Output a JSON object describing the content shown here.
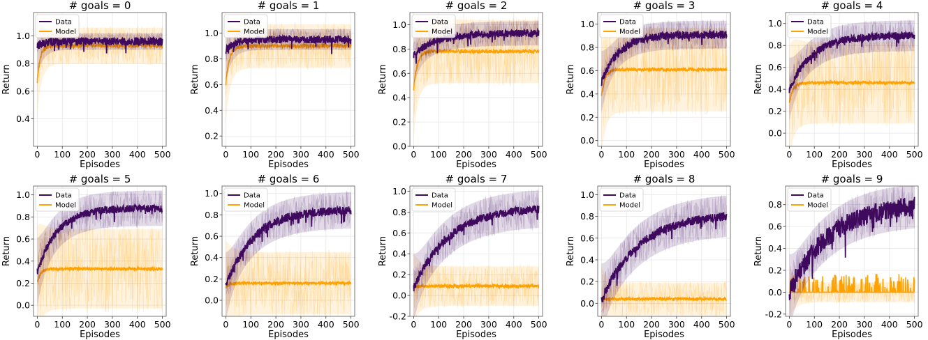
{
  "colors": {
    "data": "#3f0a5e",
    "model": "#ffa200"
  },
  "chart_data": [
    {
      "type": "line",
      "title": "# goals = 0",
      "xlabel": "Episodes",
      "ylabel": "Return",
      "xlim": [
        -15,
        515
      ],
      "ylim": [
        0.2,
        1.17
      ],
      "yticks": [
        0.4,
        0.6,
        0.8,
        1.0
      ],
      "xticks": [
        0,
        100,
        200,
        300,
        400,
        500
      ],
      "legend": "top-left",
      "grid": true,
      "series": [
        {
          "name": "Data",
          "start": 0.93,
          "end": 0.96,
          "rate": 30,
          "noise": 0.03,
          "band": 0.06
        },
        {
          "name": "Model",
          "start": 0.67,
          "end": 0.93,
          "rate": 12,
          "noise": 0.015,
          "band": 0.13
        }
      ]
    },
    {
      "type": "line",
      "title": "# goals = 1",
      "xlabel": "Episodes",
      "ylabel": "Return",
      "xlim": [
        -15,
        515
      ],
      "ylim": [
        0.12,
        1.16
      ],
      "yticks": [
        0.2,
        0.4,
        0.6,
        0.8,
        1.0
      ],
      "xticks": [
        0,
        100,
        200,
        300,
        400,
        500
      ],
      "legend": "top-left",
      "grid": true,
      "series": [
        {
          "name": "Data",
          "start": 0.86,
          "end": 0.95,
          "rate": 30,
          "noise": 0.03,
          "band": 0.08
        },
        {
          "name": "Model",
          "start": 0.6,
          "end": 0.9,
          "rate": 14,
          "noise": 0.015,
          "band": 0.17
        }
      ]
    },
    {
      "type": "line",
      "title": "# goals = 2",
      "xlabel": "Episodes",
      "ylabel": "Return",
      "xlim": [
        -15,
        515
      ],
      "ylim": [
        0.0,
        1.1
      ],
      "yticks": [
        0.0,
        0.2,
        0.4,
        0.6,
        0.8,
        1.0
      ],
      "xticks": [
        0,
        100,
        200,
        300,
        400,
        500
      ],
      "legend": "top-left",
      "grid": true,
      "series": [
        {
          "name": "Data",
          "start": 0.75,
          "end": 0.93,
          "rate": 90,
          "noise": 0.03,
          "band": 0.1
        },
        {
          "name": "Model",
          "start": 0.46,
          "end": 0.78,
          "rate": 14,
          "noise": 0.012,
          "band": 0.26
        }
      ]
    },
    {
      "type": "line",
      "title": "# goals = 3",
      "xlabel": "Episodes",
      "ylabel": "Return",
      "xlim": [
        -15,
        515
      ],
      "ylim": [
        -0.05,
        1.1
      ],
      "yticks": [
        0.0,
        0.2,
        0.4,
        0.6,
        0.8,
        1.0
      ],
      "xticks": [
        0,
        100,
        200,
        300,
        400,
        500
      ],
      "legend": "top-left",
      "grid": true,
      "series": [
        {
          "name": "Data",
          "start": 0.5,
          "end": 0.91,
          "rate": 70,
          "noise": 0.035,
          "band": 0.12
        },
        {
          "name": "Model",
          "start": 0.38,
          "end": 0.61,
          "rate": 14,
          "noise": 0.012,
          "band": 0.36
        }
      ]
    },
    {
      "type": "line",
      "title": "# goals = 4",
      "xlabel": "Episodes",
      "ylabel": "Return",
      "xlim": [
        -15,
        515
      ],
      "ylim": [
        -0.12,
        1.1
      ],
      "yticks": [
        0.0,
        0.2,
        0.4,
        0.6,
        0.8,
        1.0
      ],
      "xticks": [
        0,
        100,
        200,
        300,
        400,
        500
      ],
      "legend": "top-left",
      "grid": true,
      "series": [
        {
          "name": "Data",
          "start": 0.4,
          "end": 0.89,
          "rate": 90,
          "noise": 0.035,
          "band": 0.14
        },
        {
          "name": "Model",
          "start": 0.27,
          "end": 0.46,
          "rate": 14,
          "noise": 0.012,
          "band": 0.37
        }
      ]
    },
    {
      "type": "line",
      "title": "# goals = 5",
      "xlabel": "Episodes",
      "ylabel": "Return",
      "xlim": [
        -15,
        515
      ],
      "ylim": [
        -0.1,
        1.08
      ],
      "yticks": [
        0.0,
        0.2,
        0.4,
        0.6,
        0.8,
        1.0
      ],
      "xticks": [
        0,
        100,
        200,
        300,
        400,
        500
      ],
      "legend": "top-left",
      "grid": true,
      "series": [
        {
          "name": "Data",
          "start": 0.3,
          "end": 0.88,
          "rate": 80,
          "noise": 0.035,
          "band": 0.16
        },
        {
          "name": "Model",
          "start": 0.2,
          "end": 0.33,
          "rate": 12,
          "noise": 0.012,
          "band": 0.36
        }
      ]
    },
    {
      "type": "line",
      "title": "# goals = 6",
      "xlabel": "Episodes",
      "ylabel": "Return",
      "xlim": [
        -15,
        515
      ],
      "ylim": [
        -0.15,
        1.07
      ],
      "yticks": [
        0.0,
        0.2,
        0.4,
        0.6,
        0.8,
        1.0
      ],
      "xticks": [
        0,
        100,
        200,
        300,
        400,
        500
      ],
      "legend": "top-left",
      "grid": true,
      "series": [
        {
          "name": "Data",
          "start": 0.13,
          "end": 0.85,
          "rate": 110,
          "noise": 0.04,
          "band": 0.17
        },
        {
          "name": "Model",
          "start": 0.12,
          "end": 0.16,
          "rate": 12,
          "noise": 0.012,
          "band": 0.29
        }
      ]
    },
    {
      "type": "line",
      "title": "# goals = 7",
      "xlabel": "Episodes",
      "ylabel": "Return",
      "xlim": [
        -15,
        515
      ],
      "ylim": [
        -0.2,
        1.05
      ],
      "yticks": [
        -0.2,
        0.0,
        0.2,
        0.4,
        0.6,
        0.8,
        1.0
      ],
      "xticks": [
        0,
        100,
        200,
        300,
        400,
        500
      ],
      "legend": "top-left",
      "grid": true,
      "series": [
        {
          "name": "Data",
          "start": 0.07,
          "end": 0.85,
          "rate": 140,
          "noise": 0.04,
          "band": 0.18
        },
        {
          "name": "Model",
          "start": 0.07,
          "end": 0.09,
          "rate": 12,
          "noise": 0.015,
          "band": 0.19
        }
      ]
    },
    {
      "type": "line",
      "title": "# goals = 8",
      "xlabel": "Episodes",
      "ylabel": "Return",
      "xlim": [
        -15,
        515
      ],
      "ylim": [
        -0.12,
        1.08
      ],
      "yticks": [
        0.0,
        0.2,
        0.4,
        0.6,
        0.8,
        1.0
      ],
      "xticks": [
        0,
        100,
        200,
        300,
        400,
        500
      ],
      "legend": "top-left",
      "grid": true,
      "series": [
        {
          "name": "Data",
          "start": 0.03,
          "end": 0.83,
          "rate": 150,
          "noise": 0.04,
          "band": 0.19
        },
        {
          "name": "Model",
          "start": 0.03,
          "end": 0.04,
          "rate": 12,
          "noise": 0.012,
          "band": 0.15
        }
      ]
    },
    {
      "type": "line",
      "title": "# goals = 9",
      "xlabel": "Episodes",
      "ylabel": "Return",
      "xlim": [
        -15,
        515
      ],
      "ylim": [
        -0.22,
        0.97
      ],
      "yticks": [
        -0.2,
        0.0,
        0.2,
        0.4,
        0.6,
        0.8
      ],
      "xticks": [
        0,
        100,
        200,
        300,
        400,
        500
      ],
      "legend": "top-left",
      "grid": true,
      "series": [
        {
          "name": "Data",
          "start": 0.0,
          "end": 0.82,
          "rate": 160,
          "noise": 0.09,
          "band": 0.2
        },
        {
          "name": "Model",
          "start": 0.0,
          "end": 0.01,
          "rate": 10,
          "noise": 0.0,
          "band": 0.09,
          "spiky": true
        }
      ]
    }
  ]
}
